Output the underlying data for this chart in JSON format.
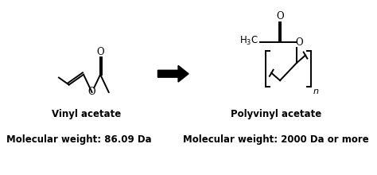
{
  "background_color": "#ffffff",
  "text_color": "#000000",
  "vinyl_acetate_label": "Vinyl acetate",
  "vinyl_acetate_mw": "Molecular weight: 86.09 Da",
  "polyvinyl_label": "Polyvinyl acetate",
  "polyvinyl_mw": "Molecular weight: 2000 Da or more",
  "label_fontsize": 8.5,
  "mw_fontsize": 8.5,
  "fig_width": 4.74,
  "fig_height": 2.2,
  "dpi": 100
}
